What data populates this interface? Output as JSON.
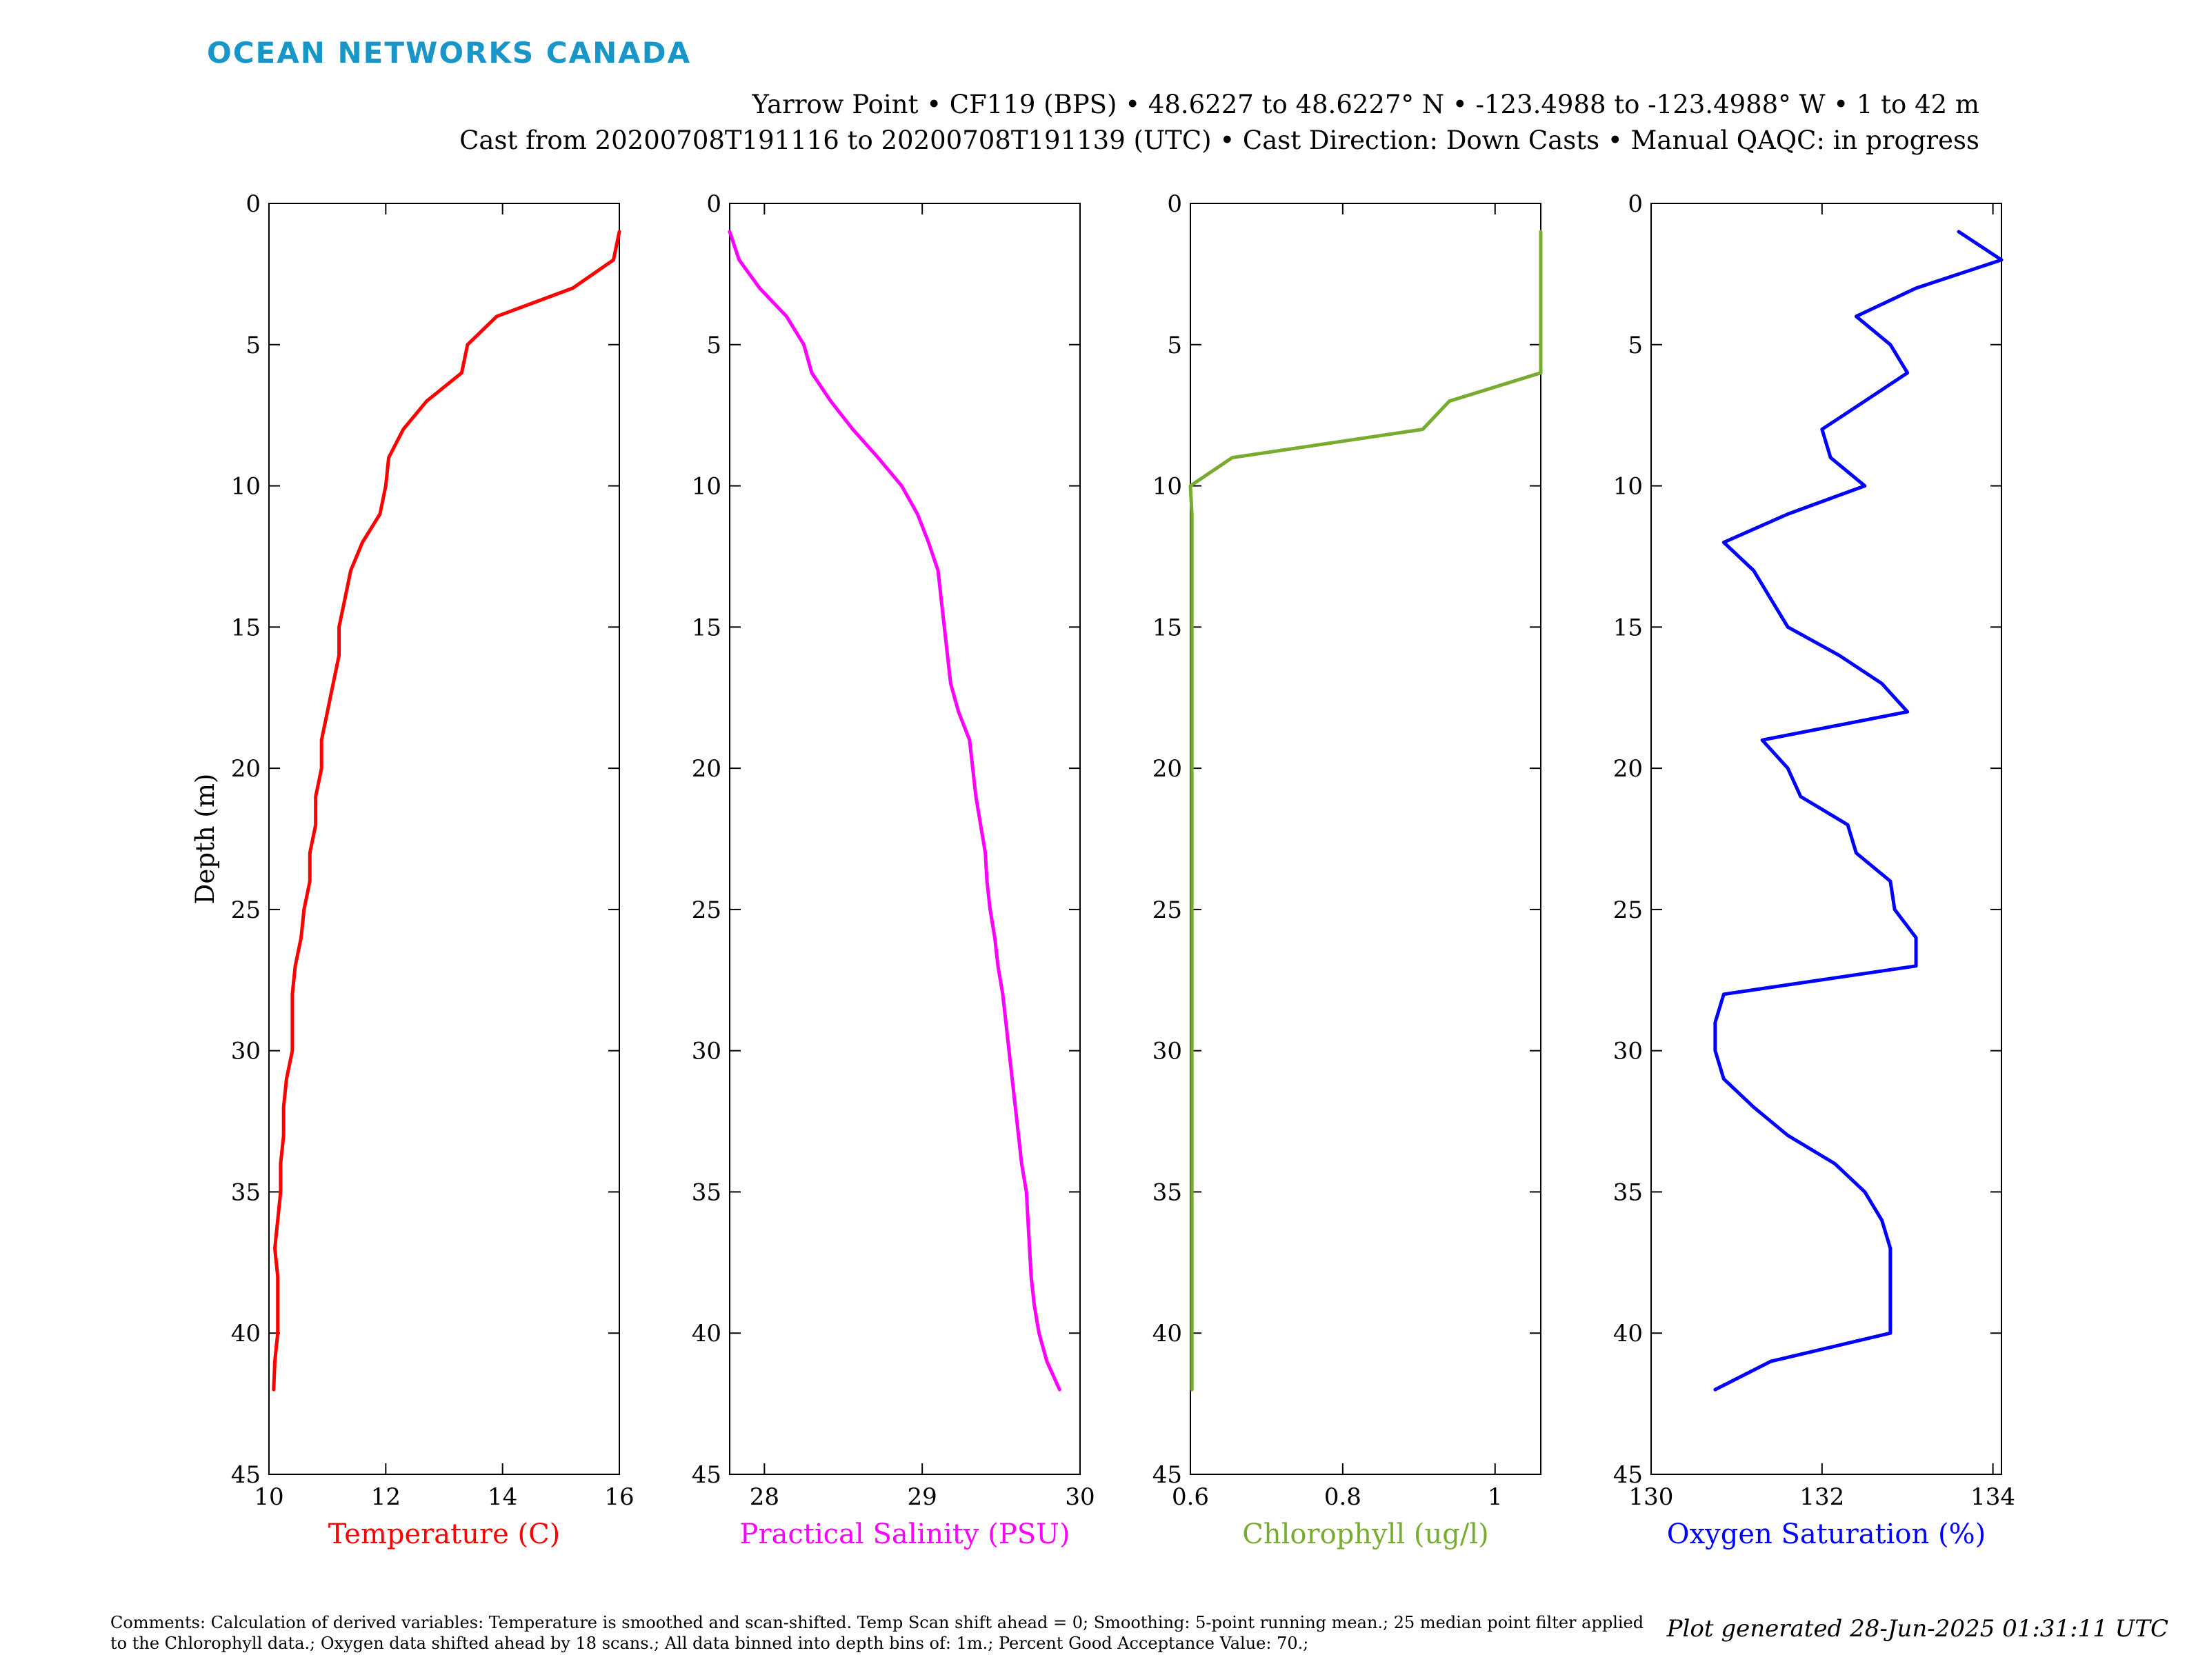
{
  "brand": "OCEAN NETWORKS CANADA",
  "header": {
    "line1": "Yarrow Point • CF119 (BPS) • 48.6227 to 48.6227° N • -123.4988 to -123.4988° W • 1 to 42 m",
    "line2": "Cast from 20200708T191116 to 20200708T191139 (UTC) • Cast Direction: Down Casts • Manual QAQC: in progress"
  },
  "comments": "Comments: Calculation of derived variables: Temperature is smoothed and scan-shifted. Temp Scan shift ahead = 0; Smoothing: 5-point running mean.; 25 median point filter applied to the Chlorophyll data.; Oxygen data shifted ahead by 18 scans.; All data binned into depth bins of: 1m.; Percent Good Acceptance Value: 70.;",
  "generated": "Plot generated 28-Jun-2025 01:31:11 UTC",
  "chart_data": [
    {
      "type": "line",
      "xlabel": "Temperature (C)",
      "ylabel": "Depth (m)",
      "color": "#ff0000",
      "xlim": [
        10,
        16
      ],
      "ylim": [
        45,
        0
      ],
      "y_reversed": true,
      "xticks": [
        10,
        12,
        14,
        16
      ],
      "xtick_labels": [
        "10",
        "12",
        "14",
        "16"
      ],
      "yticks": [
        0,
        5,
        10,
        15,
        20,
        25,
        30,
        35,
        40,
        45
      ],
      "depth": [
        1,
        2,
        3,
        4,
        5,
        6,
        7,
        8,
        9,
        10,
        11,
        12,
        13,
        14,
        15,
        16,
        17,
        18,
        19,
        20,
        21,
        22,
        23,
        24,
        25,
        26,
        27,
        28,
        29,
        30,
        31,
        32,
        33,
        34,
        35,
        36,
        37,
        38,
        39,
        40,
        41,
        42
      ],
      "x": [
        16.0,
        15.9,
        15.2,
        13.9,
        13.4,
        13.3,
        12.7,
        12.3,
        12.05,
        12.0,
        11.9,
        11.6,
        11.4,
        11.3,
        11.2,
        11.2,
        11.1,
        11.0,
        10.9,
        10.9,
        10.8,
        10.8,
        10.7,
        10.7,
        10.6,
        10.55,
        10.45,
        10.4,
        10.4,
        10.4,
        10.3,
        10.25,
        10.25,
        10.2,
        10.2,
        10.15,
        10.1,
        10.15,
        10.15,
        10.15,
        10.1,
        10.08
      ]
    },
    {
      "type": "line",
      "xlabel": "Practical Salinity (PSU)",
      "color": "#ff00ff",
      "xlim": [
        27.78,
        30
      ],
      "ylim": [
        45,
        0
      ],
      "y_reversed": true,
      "xticks": [
        28,
        29,
        30
      ],
      "xtick_labels": [
        "28",
        "29",
        "30"
      ],
      "yticks": [
        0,
        5,
        10,
        15,
        20,
        25,
        30,
        35,
        40,
        45
      ],
      "depth": [
        1,
        2,
        3,
        4,
        5,
        6,
        7,
        8,
        9,
        10,
        11,
        12,
        13,
        14,
        15,
        16,
        17,
        18,
        19,
        20,
        21,
        22,
        23,
        24,
        25,
        26,
        27,
        28,
        29,
        30,
        31,
        32,
        33,
        34,
        35,
        36,
        37,
        38,
        39,
        40,
        41,
        42
      ],
      "x": [
        27.78,
        27.84,
        27.97,
        28.14,
        28.25,
        28.3,
        28.42,
        28.56,
        28.72,
        28.87,
        28.97,
        29.04,
        29.1,
        29.12,
        29.14,
        29.16,
        29.18,
        29.23,
        29.3,
        29.32,
        29.34,
        29.37,
        29.4,
        29.41,
        29.43,
        29.46,
        29.48,
        29.51,
        29.53,
        29.55,
        29.57,
        29.59,
        29.61,
        29.63,
        29.66,
        29.67,
        29.68,
        29.69,
        29.71,
        29.74,
        29.79,
        29.87
      ]
    },
    {
      "type": "line",
      "xlabel": "Chlorophyll (ug/l)",
      "color": "#77ac30",
      "xlim": [
        0.6,
        1.06
      ],
      "ylim": [
        45,
        0
      ],
      "y_reversed": true,
      "xticks": [
        0.6,
        0.8,
        1.0
      ],
      "xtick_labels": [
        "0.6",
        "0.8",
        "1"
      ],
      "yticks": [
        0,
        5,
        10,
        15,
        20,
        25,
        30,
        35,
        40,
        45
      ],
      "depth": [
        1,
        2,
        3,
        4,
        5,
        6,
        7,
        8,
        9,
        10,
        11,
        12,
        13,
        14,
        15,
        16,
        17,
        18,
        19,
        20,
        21,
        22,
        23,
        24,
        25,
        26,
        27,
        28,
        29,
        30,
        31,
        32,
        33,
        34,
        35,
        36,
        37,
        38,
        39,
        40,
        41,
        42
      ],
      "x": [
        1.06,
        1.06,
        1.06,
        1.06,
        1.06,
        1.06,
        0.94,
        0.905,
        0.655,
        0.6,
        0.602,
        0.602,
        0.602,
        0.602,
        0.602,
        0.602,
        0.602,
        0.602,
        0.602,
        0.602,
        0.602,
        0.602,
        0.602,
        0.602,
        0.602,
        0.602,
        0.602,
        0.602,
        0.602,
        0.602,
        0.602,
        0.602,
        0.602,
        0.602,
        0.602,
        0.602,
        0.602,
        0.602,
        0.602,
        0.602,
        0.602,
        0.602
      ]
    },
    {
      "type": "line",
      "xlabel": "Oxygen Saturation (%)",
      "color": "#0000ff",
      "xlim": [
        130,
        134.1
      ],
      "ylim": [
        45,
        0
      ],
      "y_reversed": true,
      "xticks": [
        130,
        132,
        134
      ],
      "xtick_labels": [
        "130",
        "132",
        "134"
      ],
      "yticks": [
        0,
        5,
        10,
        15,
        20,
        25,
        30,
        35,
        40,
        45
      ],
      "depth": [
        1,
        2,
        3,
        4,
        5,
        6,
        7,
        8,
        9,
        10,
        11,
        12,
        13,
        14,
        15,
        16,
        17,
        18,
        19,
        20,
        21,
        22,
        23,
        24,
        25,
        26,
        27,
        28,
        29,
        30,
        31,
        32,
        33,
        34,
        35,
        36,
        37,
        38,
        39,
        40,
        41,
        42
      ],
      "x": [
        133.6,
        134.1,
        133.1,
        132.4,
        132.8,
        133.0,
        132.5,
        132.0,
        132.1,
        132.5,
        131.6,
        130.85,
        131.2,
        131.4,
        131.6,
        132.2,
        132.7,
        133.0,
        131.3,
        131.6,
        131.75,
        132.3,
        132.4,
        132.8,
        132.85,
        133.1,
        133.1,
        130.85,
        130.75,
        130.75,
        130.85,
        131.2,
        131.6,
        132.15,
        132.5,
        132.7,
        132.8,
        132.8,
        132.8,
        132.8,
        131.4,
        130.75
      ]
    }
  ]
}
